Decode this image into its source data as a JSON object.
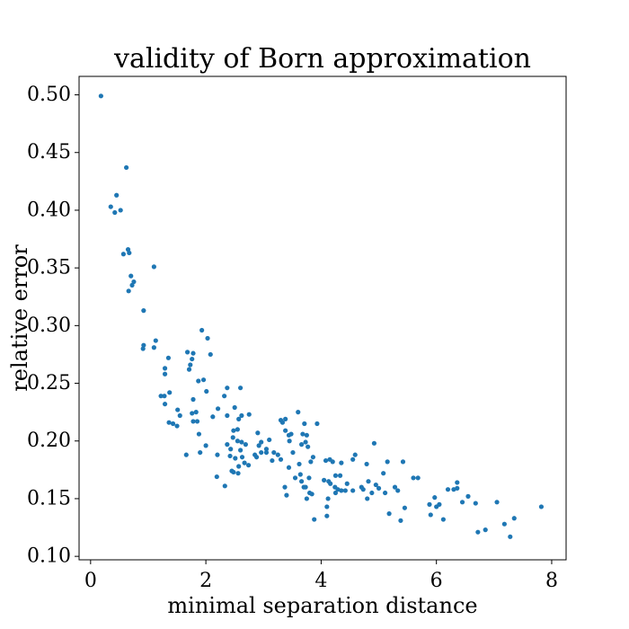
{
  "chart_data": {
    "type": "scatter",
    "title": "validity of Born approximation",
    "xlabel": "minimal separation distance",
    "ylabel": "relative error",
    "xlim": [
      -0.2,
      8.25
    ],
    "ylim": [
      0.097,
      0.516
    ],
    "xticks": [
      0,
      2,
      4,
      6,
      8
    ],
    "yticks": [
      0.1,
      0.15,
      0.2,
      0.25,
      0.3,
      0.35,
      0.4,
      0.45,
      0.5
    ],
    "xtick_labels": [
      "0",
      "2",
      "4",
      "6",
      "8"
    ],
    "ytick_labels": [
      "0.10",
      "0.15",
      "0.20",
      "0.25",
      "0.30",
      "0.35",
      "0.40",
      "0.45",
      "0.50"
    ],
    "grid": false,
    "point_color": "#1f77b4",
    "points": [
      [
        0.18,
        0.499
      ],
      [
        0.35,
        0.403
      ],
      [
        0.45,
        0.413
      ],
      [
        0.42,
        0.398
      ],
      [
        0.52,
        0.4
      ],
      [
        0.62,
        0.437
      ],
      [
        0.57,
        0.362
      ],
      [
        0.65,
        0.366
      ],
      [
        0.67,
        0.363
      ],
      [
        0.7,
        0.343
      ],
      [
        0.72,
        0.335
      ],
      [
        0.66,
        0.33
      ],
      [
        0.75,
        0.338
      ],
      [
        1.1,
        0.351
      ],
      [
        0.92,
        0.313
      ],
      [
        0.92,
        0.283
      ],
      [
        0.91,
        0.28
      ],
      [
        1.13,
        0.287
      ],
      [
        1.1,
        0.281
      ],
      [
        1.29,
        0.263
      ],
      [
        1.35,
        0.272
      ],
      [
        1.29,
        0.258
      ],
      [
        1.22,
        0.239
      ],
      [
        1.28,
        0.239
      ],
      [
        1.29,
        0.232
      ],
      [
        1.37,
        0.242
      ],
      [
        1.36,
        0.216
      ],
      [
        1.43,
        0.215
      ],
      [
        1.5,
        0.213
      ],
      [
        1.51,
        0.227
      ],
      [
        1.55,
        0.222
      ],
      [
        1.68,
        0.277
      ],
      [
        1.78,
        0.276
      ],
      [
        1.73,
        0.266
      ],
      [
        1.76,
        0.271
      ],
      [
        1.71,
        0.262
      ],
      [
        1.78,
        0.236
      ],
      [
        1.76,
        0.224
      ],
      [
        1.83,
        0.225
      ],
      [
        1.87,
        0.252
      ],
      [
        1.93,
        0.296
      ],
      [
        2.03,
        0.289
      ],
      [
        2.08,
        0.275
      ],
      [
        1.96,
        0.253
      ],
      [
        2.01,
        0.243
      ],
      [
        1.78,
        0.217
      ],
      [
        1.85,
        0.217
      ],
      [
        1.88,
        0.206
      ],
      [
        1.66,
        0.188
      ],
      [
        1.9,
        0.19
      ],
      [
        2.0,
        0.196
      ],
      [
        2.12,
        0.221
      ],
      [
        2.21,
        0.228
      ],
      [
        2.32,
        0.239
      ],
      [
        2.37,
        0.246
      ],
      [
        2.37,
        0.222
      ],
      [
        2.5,
        0.229
      ],
      [
        2.57,
        0.219
      ],
      [
        2.6,
        0.246
      ],
      [
        2.62,
        0.222
      ],
      [
        2.48,
        0.209
      ],
      [
        2.55,
        0.21
      ],
      [
        2.75,
        0.223
      ],
      [
        2.2,
        0.188
      ],
      [
        2.37,
        0.197
      ],
      [
        2.43,
        0.193
      ],
      [
        2.47,
        0.203
      ],
      [
        2.55,
        0.2
      ],
      [
        2.62,
        0.199
      ],
      [
        2.69,
        0.197
      ],
      [
        2.42,
        0.187
      ],
      [
        2.51,
        0.185
      ],
      [
        2.63,
        0.186
      ],
      [
        2.57,
        0.178
      ],
      [
        2.67,
        0.181
      ],
      [
        2.74,
        0.179
      ],
      [
        2.6,
        0.192
      ],
      [
        2.48,
        0.173
      ],
      [
        2.56,
        0.172
      ],
      [
        2.45,
        0.174
      ],
      [
        2.19,
        0.169
      ],
      [
        2.33,
        0.161
      ],
      [
        2.85,
        0.188
      ],
      [
        2.9,
        0.207
      ],
      [
        2.92,
        0.196
      ],
      [
        2.96,
        0.199
      ],
      [
        3.05,
        0.193
      ],
      [
        3.1,
        0.201
      ],
      [
        3.05,
        0.19
      ],
      [
        3.15,
        0.183
      ],
      [
        2.88,
        0.186
      ],
      [
        2.96,
        0.19
      ],
      [
        3.18,
        0.19
      ],
      [
        3.25,
        0.188
      ],
      [
        3.3,
        0.184
      ],
      [
        3.3,
        0.218
      ],
      [
        3.38,
        0.219
      ],
      [
        3.33,
        0.216
      ],
      [
        3.38,
        0.209
      ],
      [
        3.44,
        0.205
      ],
      [
        3.48,
        0.206
      ],
      [
        3.51,
        0.19
      ],
      [
        3.45,
        0.2
      ],
      [
        3.6,
        0.225
      ],
      [
        3.71,
        0.215
      ],
      [
        3.68,
        0.206
      ],
      [
        3.75,
        0.205
      ],
      [
        3.66,
        0.197
      ],
      [
        3.73,
        0.199
      ],
      [
        3.77,
        0.195
      ],
      [
        3.93,
        0.215
      ],
      [
        3.86,
        0.186
      ],
      [
        3.82,
        0.182
      ],
      [
        3.79,
        0.168
      ],
      [
        3.64,
        0.171
      ],
      [
        3.55,
        0.168
      ],
      [
        3.62,
        0.18
      ],
      [
        3.44,
        0.177
      ],
      [
        3.37,
        0.16
      ],
      [
        3.4,
        0.153
      ],
      [
        3.66,
        0.165
      ],
      [
        3.73,
        0.16
      ],
      [
        3.8,
        0.155
      ],
      [
        3.75,
        0.15
      ],
      [
        3.84,
        0.154
      ],
      [
        3.88,
        0.132
      ],
      [
        3.7,
        0.16
      ],
      [
        4.08,
        0.183
      ],
      [
        4.15,
        0.184
      ],
      [
        4.2,
        0.182
      ],
      [
        4.35,
        0.181
      ],
      [
        4.05,
        0.166
      ],
      [
        4.13,
        0.165
      ],
      [
        4.16,
        0.163
      ],
      [
        4.25,
        0.17
      ],
      [
        4.33,
        0.17
      ],
      [
        4.24,
        0.16
      ],
      [
        4.12,
        0.15
      ],
      [
        4.1,
        0.143
      ],
      [
        4.1,
        0.135
      ],
      [
        4.25,
        0.155
      ],
      [
        4.29,
        0.158
      ],
      [
        4.35,
        0.157
      ],
      [
        4.42,
        0.157
      ],
      [
        4.45,
        0.163
      ],
      [
        4.55,
        0.157
      ],
      [
        4.55,
        0.184
      ],
      [
        4.59,
        0.188
      ],
      [
        4.7,
        0.16
      ],
      [
        4.73,
        0.158
      ],
      [
        4.79,
        0.18
      ],
      [
        4.82,
        0.165
      ],
      [
        4.8,
        0.15
      ],
      [
        4.88,
        0.155
      ],
      [
        4.92,
        0.198
      ],
      [
        4.95,
        0.162
      ],
      [
        5.0,
        0.159
      ],
      [
        5.08,
        0.172
      ],
      [
        5.15,
        0.182
      ],
      [
        5.11,
        0.155
      ],
      [
        5.18,
        0.137
      ],
      [
        5.28,
        0.16
      ],
      [
        5.38,
        0.131
      ],
      [
        5.33,
        0.157
      ],
      [
        5.42,
        0.182
      ],
      [
        5.45,
        0.142
      ],
      [
        5.6,
        0.168
      ],
      [
        5.68,
        0.168
      ],
      [
        5.88,
        0.145
      ],
      [
        5.9,
        0.136
      ],
      [
        5.97,
        0.151
      ],
      [
        6.0,
        0.143
      ],
      [
        6.05,
        0.145
      ],
      [
        6.12,
        0.132
      ],
      [
        6.2,
        0.158
      ],
      [
        6.3,
        0.158
      ],
      [
        6.36,
        0.164
      ],
      [
        6.36,
        0.159
      ],
      [
        6.45,
        0.147
      ],
      [
        6.55,
        0.152
      ],
      [
        6.68,
        0.146
      ],
      [
        6.72,
        0.121
      ],
      [
        6.85,
        0.123
      ],
      [
        7.05,
        0.147
      ],
      [
        7.18,
        0.128
      ],
      [
        7.28,
        0.117
      ],
      [
        7.35,
        0.133
      ],
      [
        7.82,
        0.143
      ]
    ]
  }
}
